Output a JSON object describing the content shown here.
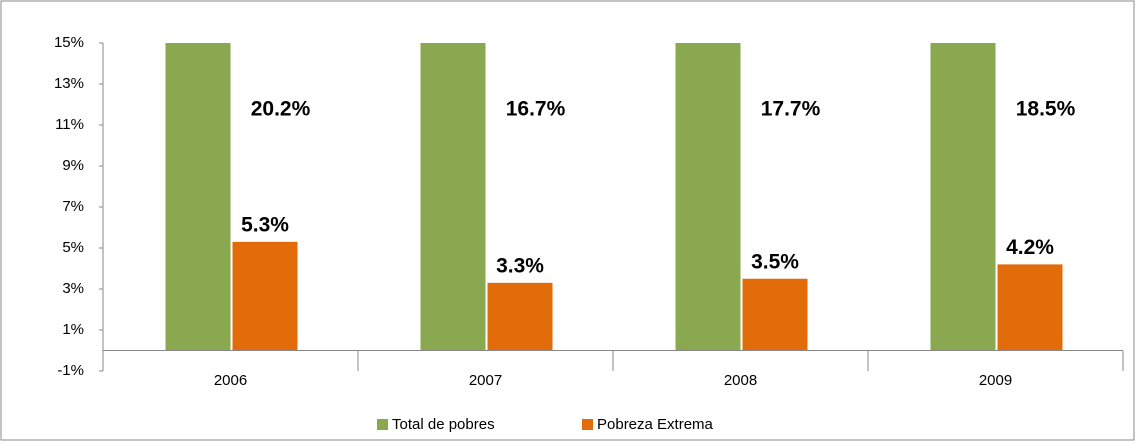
{
  "chart_data": {
    "type": "bar",
    "categories": [
      "2006",
      "2007",
      "2008",
      "2009"
    ],
    "series": [
      {
        "name": "Total de pobres",
        "color": "#8aa84f",
        "values": [
          20.2,
          16.7,
          17.7,
          18.5
        ],
        "value_labels": [
          "20.2%",
          "16.7%",
          "17.7%",
          "18.5%"
        ]
      },
      {
        "name": "Pobreza Extrema",
        "color": "#e36c0a",
        "values": [
          5.3,
          3.3,
          3.5,
          4.2
        ],
        "value_labels": [
          "5.3%",
          "3.3%",
          "3.5%",
          "4.2%"
        ]
      }
    ],
    "ylim": [
      -1,
      15
    ],
    "yticks": [
      {
        "value": -1,
        "label": "-1%"
      },
      {
        "value": 1,
        "label": "1%"
      },
      {
        "value": 3,
        "label": "3%"
      },
      {
        "value": 5,
        "label": "5%"
      },
      {
        "value": 7,
        "label": "7%"
      },
      {
        "value": 9,
        "label": "9%"
      },
      {
        "value": 11,
        "label": "11%"
      },
      {
        "value": 13,
        "label": "13%"
      },
      {
        "value": 15,
        "label": "15%"
      }
    ],
    "grid": false,
    "legend": "bottom"
  }
}
